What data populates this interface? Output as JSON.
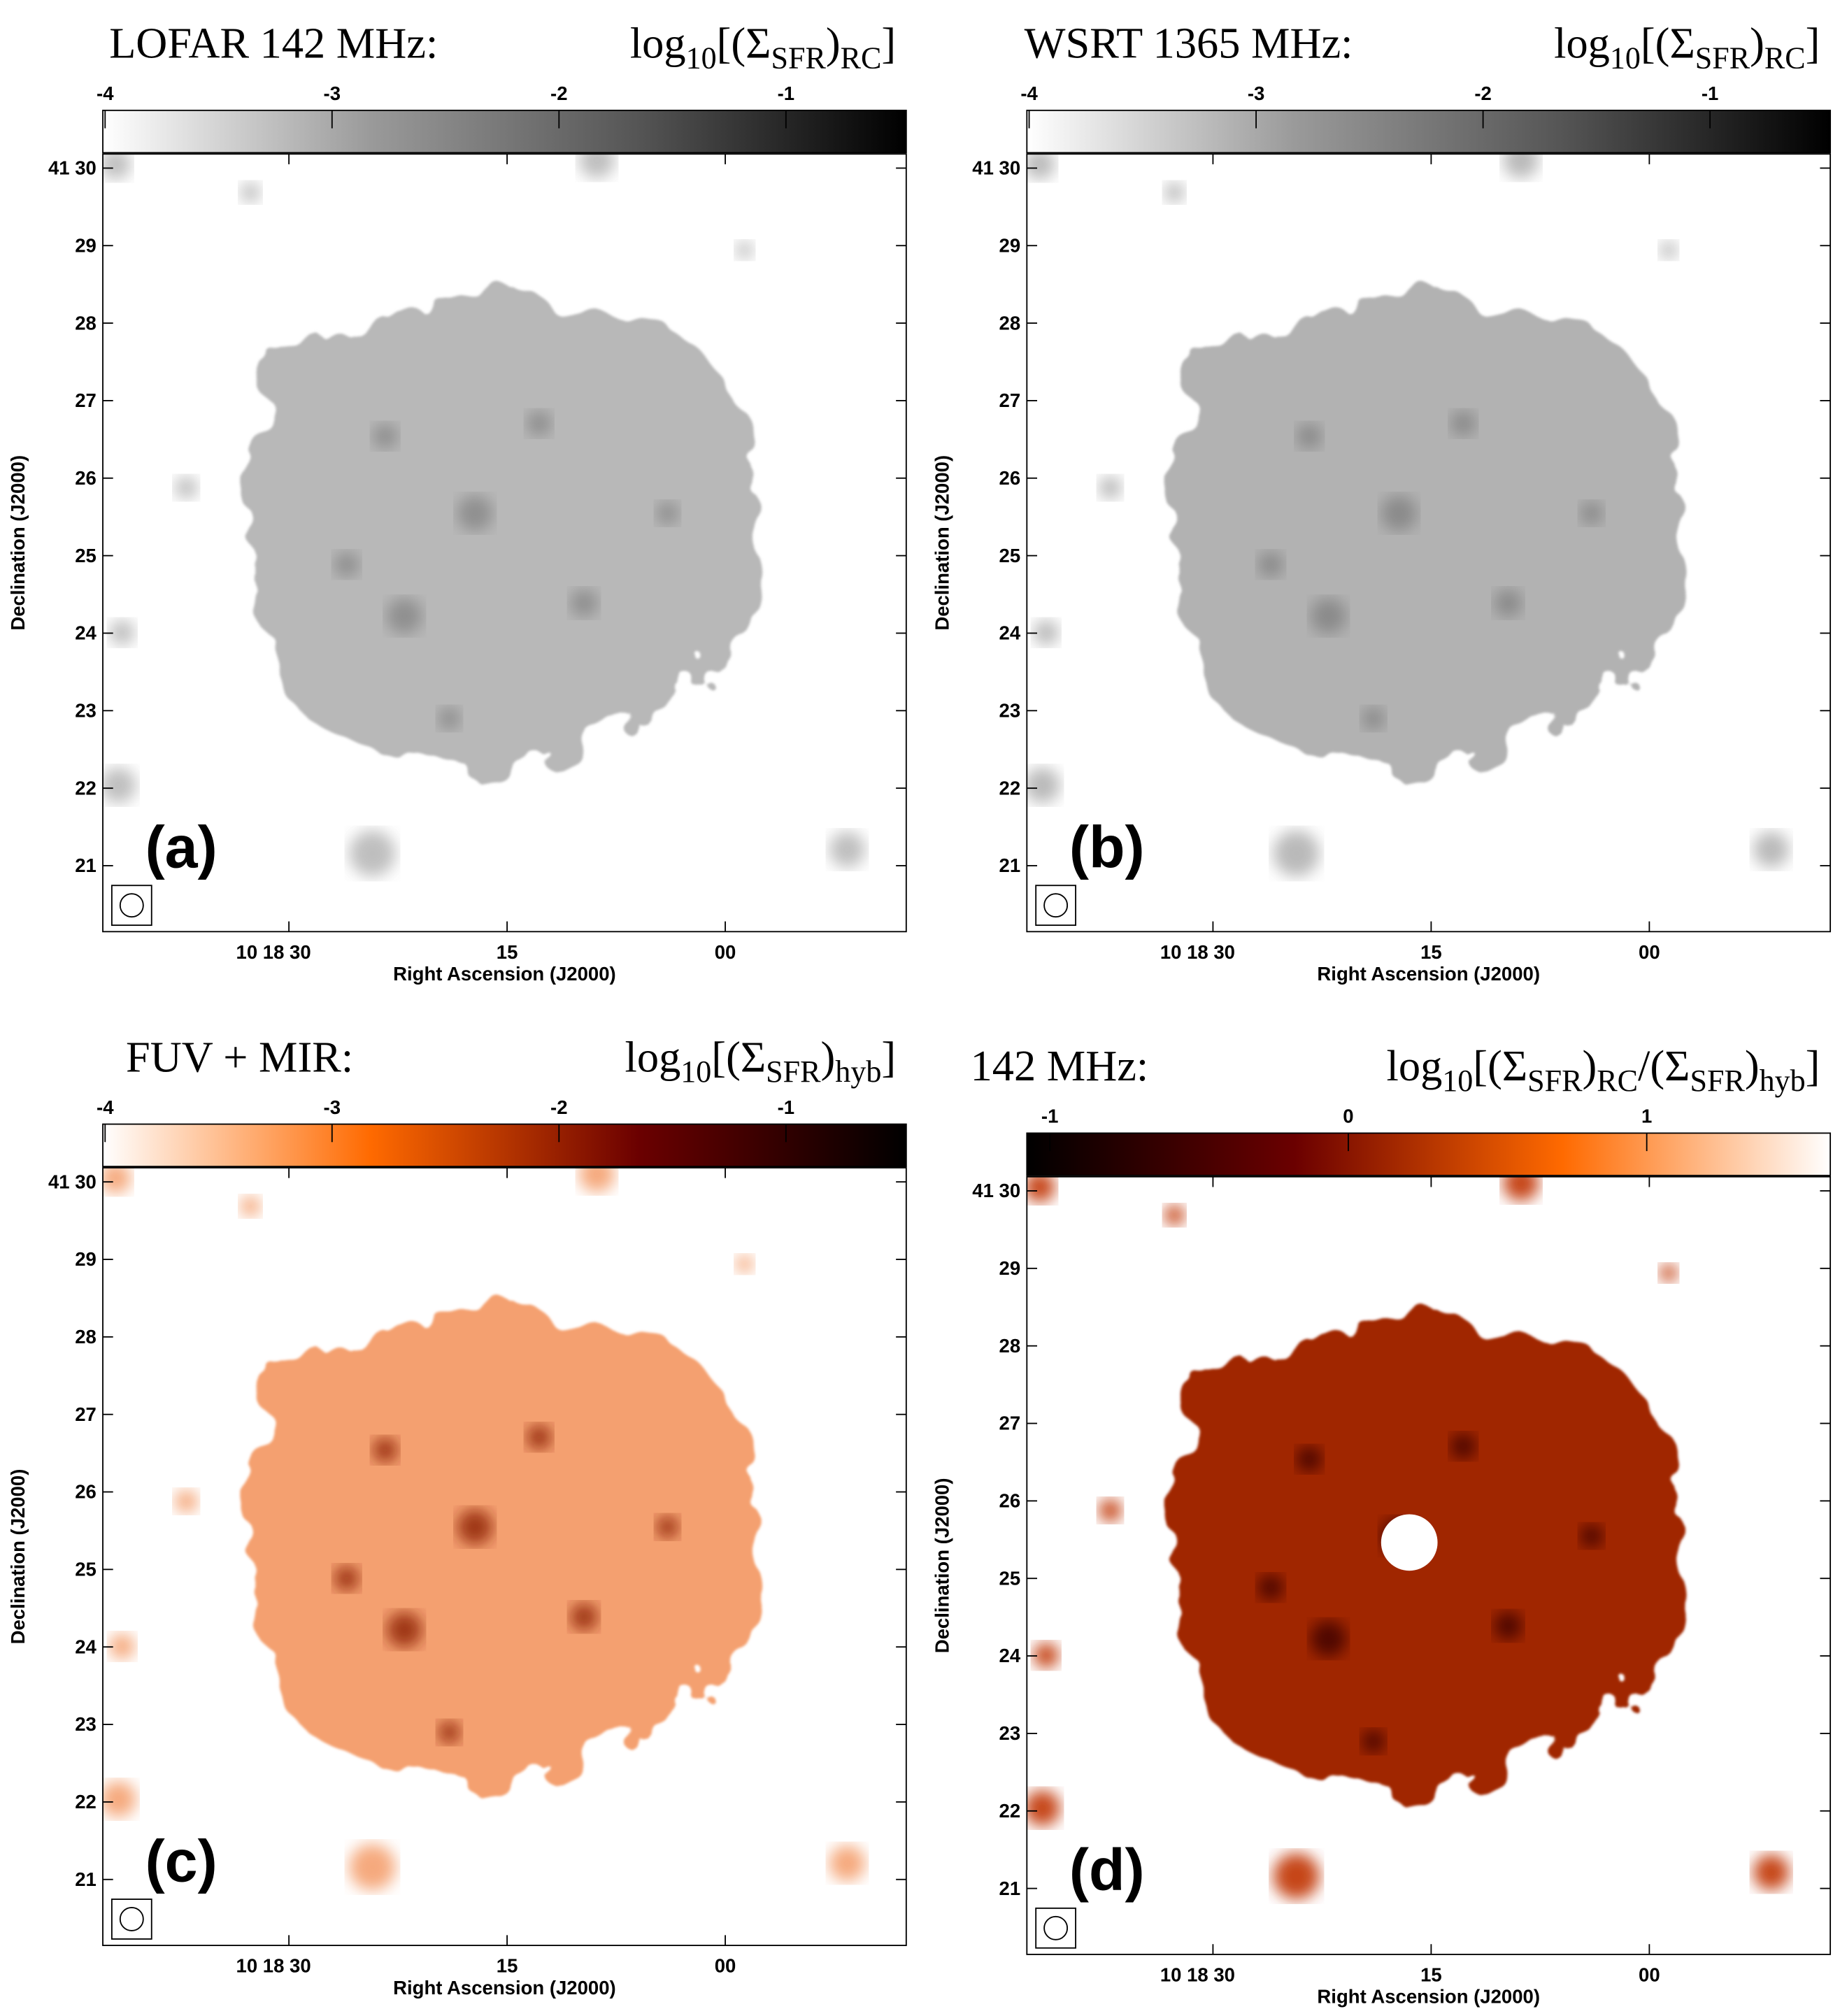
{
  "panels": [
    {
      "label": "(a)",
      "title": "LOFAR 142 MHz:",
      "formula": [
        {
          "text": "log",
          "sub": "10"
        },
        {
          "text": "[(Σ",
          "sub": "SFR"
        },
        {
          "text": ")",
          "sub": "RC"
        },
        {
          "text": "]"
        }
      ],
      "colorbar_ticks": [
        -4,
        -3,
        -2,
        -1
      ],
      "colorbar_range": [
        -4.01,
        -0.47
      ],
      "colormap": [
        "#ffffff",
        "#9a9a9a",
        "#555555",
        "#000000"
      ],
      "yticks": [
        "41 30",
        "29",
        "28",
        "27",
        "26",
        "25",
        "24",
        "23",
        "22",
        "21"
      ],
      "xticks": [
        "10 18 30",
        "15",
        "00"
      ],
      "ylabel": "Declination (J2000)",
      "xlabel": "Right Ascension (J2000)"
    },
    {
      "label": "(b)",
      "title": "WSRT 1365 MHz:",
      "formula": [
        {
          "text": "log",
          "sub": "10"
        },
        {
          "text": "[(Σ",
          "sub": "SFR"
        },
        {
          "text": ")",
          "sub": "RC"
        },
        {
          "text": "]"
        }
      ],
      "colorbar_ticks": [
        -4,
        -3,
        -2,
        -1
      ],
      "colorbar_range": [
        -4.01,
        -0.47
      ],
      "colormap": [
        "#ffffff",
        "#9a9a9a",
        "#555555",
        "#000000"
      ],
      "yticks": [
        "41 30",
        "29",
        "28",
        "27",
        "26",
        "25",
        "24",
        "23",
        "22",
        "21"
      ],
      "xticks": [
        "10 18 30",
        "15",
        "00"
      ],
      "ylabel": "Declination (J2000)",
      "xlabel": "Right Ascension (J2000)"
    },
    {
      "label": "(c)",
      "title": "FUV + MIR:",
      "formula": [
        {
          "text": "log",
          "sub": "10"
        },
        {
          "text": "[(Σ",
          "sub": "SFR"
        },
        {
          "text": ")",
          "sub": "hyb"
        },
        {
          "text": "]"
        }
      ],
      "colorbar_ticks": [
        -4,
        -3,
        -2,
        -1
      ],
      "colorbar_range": [
        -4.01,
        -0.47
      ],
      "colormap": [
        "#ffffff",
        "#ff6a00",
        "#6b0000",
        "#000000"
      ],
      "yticks": [
        "41 30",
        "29",
        "28",
        "27",
        "26",
        "25",
        "24",
        "23",
        "22",
        "21"
      ],
      "xticks": [
        "10 18 30",
        "15",
        "00"
      ],
      "ylabel": "Declination (J2000)",
      "xlabel": "Right Ascension (J2000)"
    },
    {
      "label": "(d)",
      "title": "142 MHz:",
      "formula": [
        {
          "text": "log",
          "sub": "10"
        },
        {
          "text": "[(Σ",
          "sub": "SFR"
        },
        {
          "text": ")",
          "sub": "RC"
        },
        {
          "text": "/(Σ",
          "sub": "SFR"
        },
        {
          "text": ")",
          "sub": "hyb"
        },
        {
          "text": "]"
        }
      ],
      "colorbar_ticks": [
        -1,
        0,
        1
      ],
      "colorbar_range": [
        -1.077,
        1.615
      ],
      "colormap": [
        "#000000",
        "#6b0000",
        "#ff6a00",
        "#ffffff"
      ],
      "yticks": [
        "41 30",
        "29",
        "28",
        "27",
        "26",
        "25",
        "24",
        "23",
        "22",
        "21"
      ],
      "xticks": [
        "10 18 30",
        "15",
        "00"
      ],
      "ylabel": "Declination (J2000)",
      "xlabel": "Right Ascension (J2000)"
    }
  ]
}
